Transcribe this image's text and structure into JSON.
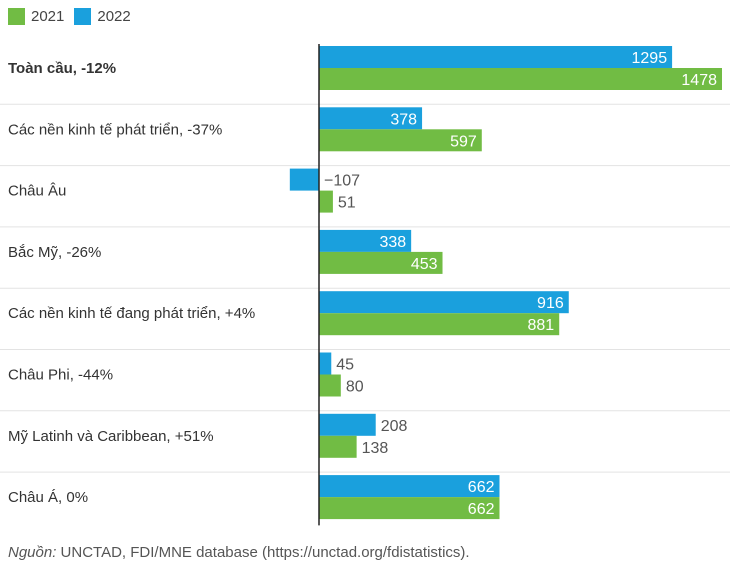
{
  "chart_data": {
    "type": "bar",
    "orientation": "horizontal",
    "categories": [
      "Toàn cầu,  -12%",
      "Các nền kinh tế phát triển, -37%",
      "Châu Âu",
      "Bắc Mỹ,  -26%",
      "Các nền kinh tế đang phát triển, +4%",
      "Châu Phi,  -44%",
      "Mỹ Latinh và Caribbean,  +51%",
      "Châu Á,  0%"
    ],
    "bold_categories": [
      0
    ],
    "series": [
      {
        "name": "2022",
        "color": "#1aa0dd",
        "values": [
          1295,
          378,
          -107,
          338,
          916,
          45,
          208,
          662
        ]
      },
      {
        "name": "2021",
        "color": "#71bc44",
        "values": [
          1478,
          597,
          51,
          453,
          881,
          80,
          138,
          662
        ]
      }
    ],
    "legend_order": [
      "2021",
      "2022"
    ],
    "value_labels": {
      "2022": [
        "1295",
        "378",
        "−107",
        "338",
        "916",
        "45",
        "208",
        "662"
      ],
      "2021": [
        "1478",
        "597",
        "51",
        "453",
        "881",
        "80",
        "138",
        "662"
      ]
    },
    "xlim": [
      -170,
      1478
    ]
  },
  "source": {
    "label": "Nguồn:",
    "text": " UNCTAD, FDI/MNE database (https://unctad.org/fdistatistics)."
  }
}
